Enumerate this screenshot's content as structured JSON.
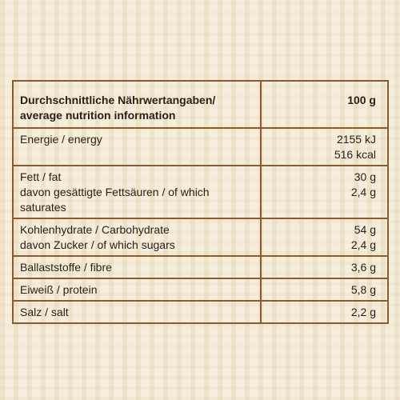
{
  "table": {
    "header": {
      "label": [
        "Durchschnittliche Nährwertangaben/",
        "average nutrition information"
      ],
      "value": [
        "100 g"
      ]
    },
    "rows": [
      {
        "label": [
          "Energie / energy"
        ],
        "value": [
          "2155 kJ",
          "516 kcal"
        ]
      },
      {
        "label": [
          "Fett / fat",
          "davon gesättigte Fettsäuren / of which saturates"
        ],
        "value": [
          "30 g",
          "2,4 g"
        ]
      },
      {
        "label": [
          "Kohlenhydrate / Carbohydrate",
          "davon Zucker / of which sugars"
        ],
        "value": [
          "54 g",
          "2,4 g"
        ]
      },
      {
        "label": [
          "Ballaststoffe / fibre"
        ],
        "value": [
          "3,6 g"
        ]
      },
      {
        "label": [
          "Eiweiß / protein"
        ],
        "value": [
          "5,8 g"
        ]
      },
      {
        "label": [
          "Salz / salt"
        ],
        "value": [
          "2,2 g"
        ]
      }
    ]
  }
}
